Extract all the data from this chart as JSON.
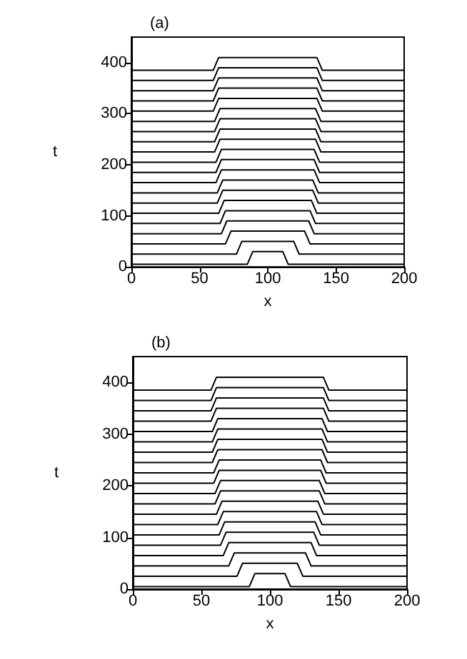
{
  "chart_data": [
    {
      "type": "line",
      "title": "(a)",
      "xlabel": "x",
      "ylabel": "t",
      "xlim": [
        0,
        200
      ],
      "xticks": [
        0,
        50,
        100,
        150,
        200
      ],
      "ylim": [
        0,
        450
      ],
      "yticks": [
        0,
        100,
        200,
        300,
        400
      ],
      "marker": "none",
      "series": [
        {
          "color": "#000000",
          "x": [
            0,
            85,
            89,
            111,
            115,
            200
          ],
          "values": [
            5,
            5,
            30,
            30,
            5,
            5
          ]
        },
        {
          "color": "#000000",
          "x": [
            0,
            77,
            81,
            119,
            123,
            200
          ],
          "values": [
            25,
            25,
            50,
            50,
            25,
            25
          ]
        },
        {
          "color": "#000000",
          "x": [
            0,
            69,
            73,
            127,
            131,
            200
          ],
          "values": [
            45,
            45,
            70,
            70,
            45,
            45
          ]
        },
        {
          "color": "#000000",
          "x": [
            0,
            66,
            70,
            130,
            134,
            200
          ],
          "values": [
            65,
            65,
            90,
            90,
            65,
            65
          ]
        },
        {
          "color": "#000000",
          "x": [
            0,
            65,
            69,
            131,
            135,
            200
          ],
          "values": [
            85,
            85,
            110,
            110,
            85,
            85
          ]
        },
        {
          "color": "#000000",
          "x": [
            0,
            64,
            68,
            132,
            136,
            200
          ],
          "values": [
            105,
            105,
            130,
            130,
            105,
            105
          ]
        },
        {
          "color": "#000000",
          "x": [
            0,
            63,
            67,
            133,
            137,
            200
          ],
          "values": [
            125,
            125,
            150,
            150,
            125,
            125
          ]
        },
        {
          "color": "#000000",
          "x": [
            0,
            63,
            67,
            133,
            137,
            200
          ],
          "values": [
            145,
            145,
            170,
            170,
            145,
            145
          ]
        },
        {
          "color": "#000000",
          "x": [
            0,
            62,
            66,
            134,
            138,
            200
          ],
          "values": [
            165,
            165,
            190,
            190,
            165,
            165
          ]
        },
        {
          "color": "#000000",
          "x": [
            0,
            62,
            66,
            134,
            138,
            200
          ],
          "values": [
            185,
            185,
            210,
            210,
            185,
            185
          ]
        },
        {
          "color": "#000000",
          "x": [
            0,
            62,
            66,
            134,
            138,
            200
          ],
          "values": [
            205,
            205,
            230,
            230,
            205,
            205
          ]
        },
        {
          "color": "#000000",
          "x": [
            0,
            61,
            65,
            135,
            139,
            200
          ],
          "values": [
            225,
            225,
            250,
            250,
            225,
            225
          ]
        },
        {
          "color": "#000000",
          "x": [
            0,
            61,
            65,
            135,
            139,
            200
          ],
          "values": [
            245,
            245,
            270,
            270,
            245,
            245
          ]
        },
        {
          "color": "#000000",
          "x": [
            0,
            61,
            65,
            135,
            139,
            200
          ],
          "values": [
            265,
            265,
            290,
            290,
            265,
            265
          ]
        },
        {
          "color": "#000000",
          "x": [
            0,
            61,
            65,
            135,
            139,
            200
          ],
          "values": [
            285,
            285,
            310,
            310,
            285,
            285
          ]
        },
        {
          "color": "#000000",
          "x": [
            0,
            60,
            64,
            136,
            140,
            200
          ],
          "values": [
            305,
            305,
            330,
            330,
            305,
            305
          ]
        },
        {
          "color": "#000000",
          "x": [
            0,
            60,
            64,
            136,
            140,
            200
          ],
          "values": [
            325,
            325,
            350,
            350,
            325,
            325
          ]
        },
        {
          "color": "#000000",
          "x": [
            0,
            60,
            64,
            136,
            140,
            200
          ],
          "values": [
            345,
            345,
            370,
            370,
            345,
            345
          ]
        },
        {
          "color": "#000000",
          "x": [
            0,
            60,
            64,
            136,
            140,
            200
          ],
          "values": [
            365,
            365,
            390,
            390,
            365,
            365
          ]
        },
        {
          "color": "#000000",
          "x": [
            0,
            60,
            64,
            136,
            140,
            200
          ],
          "values": [
            385,
            385,
            410,
            410,
            385,
            385
          ]
        }
      ]
    },
    {
      "type": "line",
      "title": "(b)",
      "xlabel": "x",
      "ylabel": "t",
      "xlim": [
        0,
        200
      ],
      "xticks": [
        0,
        50,
        100,
        150,
        200
      ],
      "ylim": [
        0,
        450
      ],
      "yticks": [
        0,
        100,
        200,
        300,
        400
      ],
      "marker": "none",
      "series": [
        {
          "color": "#000000",
          "x": [
            0,
            85,
            89,
            111,
            115,
            200
          ],
          "values": [
            5,
            5,
            30,
            30,
            5,
            5
          ]
        },
        {
          "color": "#000000",
          "x": [
            0,
            76,
            80,
            120,
            124,
            200
          ],
          "values": [
            25,
            25,
            50,
            50,
            25,
            25
          ]
        },
        {
          "color": "#000000",
          "x": [
            0,
            70,
            74,
            126,
            130,
            200
          ],
          "values": [
            45,
            45,
            70,
            70,
            45,
            45
          ]
        },
        {
          "color": "#000000",
          "x": [
            0,
            66,
            70,
            130,
            134,
            200
          ],
          "values": [
            65,
            65,
            90,
            90,
            65,
            65
          ]
        },
        {
          "color": "#000000",
          "x": [
            0,
            64,
            68,
            132,
            136,
            200
          ],
          "values": [
            85,
            85,
            110,
            110,
            85,
            85
          ]
        },
        {
          "color": "#000000",
          "x": [
            0,
            63,
            67,
            133,
            137,
            200
          ],
          "values": [
            105,
            105,
            130,
            130,
            105,
            105
          ]
        },
        {
          "color": "#000000",
          "x": [
            0,
            62,
            66,
            134,
            138,
            200
          ],
          "values": [
            125,
            125,
            150,
            150,
            125,
            125
          ]
        },
        {
          "color": "#000000",
          "x": [
            0,
            61,
            65,
            135,
            139,
            200
          ],
          "values": [
            145,
            145,
            170,
            170,
            145,
            145
          ]
        },
        {
          "color": "#000000",
          "x": [
            0,
            60,
            64,
            136,
            140,
            200
          ],
          "values": [
            165,
            165,
            190,
            190,
            165,
            165
          ]
        },
        {
          "color": "#000000",
          "x": [
            0,
            60,
            64,
            136,
            140,
            200
          ],
          "values": [
            185,
            185,
            210,
            210,
            185,
            185
          ]
        },
        {
          "color": "#000000",
          "x": [
            0,
            59,
            63,
            137,
            141,
            200
          ],
          "values": [
            205,
            205,
            230,
            230,
            205,
            205
          ]
        },
        {
          "color": "#000000",
          "x": [
            0,
            59,
            63,
            137,
            141,
            200
          ],
          "values": [
            225,
            225,
            250,
            250,
            225,
            225
          ]
        },
        {
          "color": "#000000",
          "x": [
            0,
            58,
            62,
            138,
            142,
            200
          ],
          "values": [
            245,
            245,
            270,
            270,
            245,
            245
          ]
        },
        {
          "color": "#000000",
          "x": [
            0,
            58,
            62,
            138,
            142,
            200
          ],
          "values": [
            265,
            265,
            290,
            290,
            265,
            265
          ]
        },
        {
          "color": "#000000",
          "x": [
            0,
            58,
            62,
            138,
            142,
            200
          ],
          "values": [
            285,
            285,
            310,
            310,
            285,
            285
          ]
        },
        {
          "color": "#000000",
          "x": [
            0,
            58,
            62,
            138,
            142,
            200
          ],
          "values": [
            305,
            305,
            330,
            330,
            305,
            305
          ]
        },
        {
          "color": "#000000",
          "x": [
            0,
            57,
            61,
            139,
            143,
            200
          ],
          "values": [
            325,
            325,
            350,
            350,
            325,
            325
          ]
        },
        {
          "color": "#000000",
          "x": [
            0,
            57,
            61,
            139,
            143,
            200
          ],
          "values": [
            345,
            345,
            370,
            370,
            345,
            345
          ]
        },
        {
          "color": "#000000",
          "x": [
            0,
            57,
            61,
            139,
            143,
            200
          ],
          "values": [
            365,
            365,
            390,
            390,
            365,
            365
          ]
        },
        {
          "color": "#000000",
          "x": [
            0,
            57,
            61,
            139,
            143,
            200
          ],
          "values": [
            385,
            385,
            410,
            410,
            385,
            385
          ]
        }
      ]
    }
  ]
}
